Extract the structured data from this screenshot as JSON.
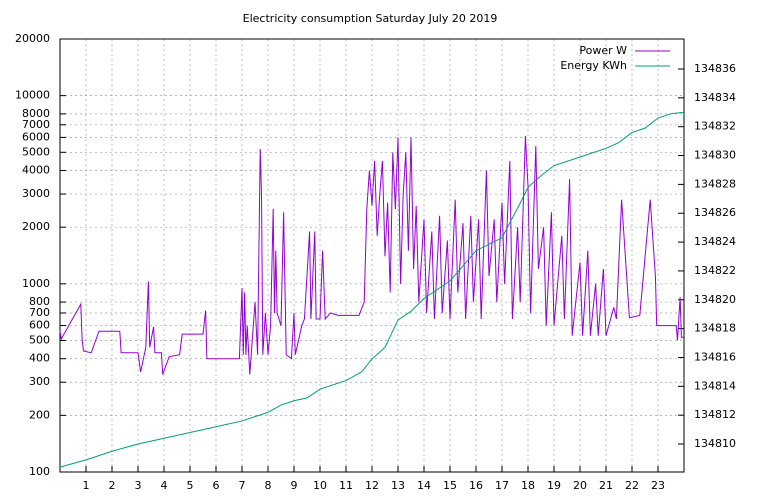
{
  "chart_data": {
    "type": "line",
    "title": "Electricity consumption Saturday July 20 2019",
    "xlim": [
      0,
      24
    ],
    "xticks": [
      1,
      2,
      3,
      4,
      5,
      6,
      7,
      8,
      9,
      10,
      11,
      12,
      13,
      14,
      15,
      16,
      17,
      18,
      19,
      20,
      21,
      22,
      23
    ],
    "ylim": [
      100,
      20000
    ],
    "log_y": true,
    "grid": true,
    "legend": "top-right",
    "yticks": [
      100,
      200,
      300,
      400,
      500,
      600,
      700,
      800,
      1000,
      2000,
      3000,
      4000,
      5000,
      6000,
      7000,
      8000,
      10000,
      20000
    ],
    "y2lim": [
      134808.06,
      134838.08
    ],
    "y2ticks": [
      134810,
      134812,
      134814,
      134816,
      134818,
      134820,
      134822,
      134824,
      134826,
      134828,
      134830,
      134832,
      134834,
      134836
    ],
    "series": [
      {
        "name": "Power W",
        "color": "#9400d3",
        "x": [
          0,
          0.05,
          0.8,
          0.85,
          0.9,
          1.2,
          1.5,
          2.3,
          2.35,
          3.0,
          3.1,
          3.3,
          3.4,
          3.45,
          3.6,
          3.65,
          3.9,
          3.95,
          4.2,
          4.6,
          4.7,
          5.5,
          5.6,
          5.65,
          6.9,
          7.0,
          7.05,
          7.1,
          7.15,
          7.2,
          7.3,
          7.5,
          7.6,
          7.7,
          7.75,
          7.8,
          7.9,
          8.0,
          8.1,
          8.2,
          8.25,
          8.3,
          8.35,
          8.5,
          8.6,
          8.7,
          8.9,
          9.0,
          9.05,
          9.3,
          9.4,
          9.6,
          9.65,
          9.8,
          9.85,
          10.0,
          10.1,
          10.2,
          10.4,
          10.7,
          11.5,
          11.7,
          11.8,
          11.9,
          12.0,
          12.1,
          12.2,
          12.3,
          12.4,
          12.5,
          12.6,
          12.7,
          12.8,
          12.9,
          13.0,
          13.1,
          13.2,
          13.3,
          13.4,
          13.5,
          13.6,
          13.7,
          13.8,
          14.0,
          14.1,
          14.3,
          14.4,
          14.6,
          14.7,
          14.9,
          15.0,
          15.2,
          15.3,
          15.5,
          15.6,
          15.8,
          15.9,
          16.1,
          16.2,
          16.4,
          16.5,
          16.7,
          16.8,
          17.0,
          17.1,
          17.3,
          17.4,
          17.6,
          17.7,
          17.9,
          18.0,
          18.1,
          18.3,
          18.4,
          18.6,
          18.7,
          18.9,
          19.0,
          19.3,
          19.4,
          19.6,
          19.7,
          20.0,
          20.1,
          20.3,
          20.4,
          20.6,
          20.7,
          20.9,
          21.0,
          21.3,
          21.4,
          21.6,
          21.9,
          22.3,
          22.7,
          22.9,
          22.95,
          23.7,
          23.75,
          23.85,
          23.9,
          24
        ],
        "values": [
          560,
          510,
          780,
          510,
          440,
          430,
          560,
          560,
          430,
          430,
          340,
          460,
          1030,
          460,
          590,
          430,
          430,
          330,
          410,
          420,
          540,
          540,
          720,
          400,
          400,
          950,
          420,
          900,
          420,
          600,
          330,
          800,
          420,
          5200,
          3000,
          420,
          700,
          420,
          600,
          2500,
          700,
          1500,
          700,
          600,
          2400,
          420,
          400,
          700,
          420,
          600,
          650,
          1900,
          650,
          1900,
          650,
          650,
          1500,
          650,
          700,
          680,
          680,
          800,
          2500,
          4000,
          2600,
          4500,
          1800,
          3000,
          4500,
          1400,
          2700,
          900,
          5000,
          2500,
          6000,
          1000,
          3000,
          5000,
          1500,
          6000,
          1200,
          2600,
          800,
          2200,
          700,
          1900,
          650,
          2300,
          700,
          1700,
          650,
          2800,
          900,
          2100,
          650,
          2300,
          800,
          2200,
          650,
          4000,
          1100,
          2200,
          800,
          2700,
          1000,
          4500,
          650,
          2000,
          800,
          6100,
          3300,
          700,
          5400,
          1200,
          2000,
          600,
          2400,
          600,
          1800,
          650,
          3600,
          530,
          1300,
          530,
          1500,
          530,
          1000,
          530,
          1200,
          530,
          750,
          650,
          2800,
          660,
          680,
          2800,
          1100,
          600,
          600,
          500,
          850,
          520,
          520
        ]
      },
      {
        "name": "Energy KWh",
        "color": "#009e73",
        "axis": "y2",
        "x": [
          0,
          1,
          2,
          3,
          4,
          5,
          6,
          7,
          7.5,
          8,
          8.5,
          9,
          9.5,
          10,
          11,
          11.6,
          12,
          12.5,
          13,
          13.5,
          14,
          15,
          16,
          17,
          17.7,
          18,
          18.5,
          19,
          20,
          21,
          21.5,
          22,
          22.5,
          23,
          23.5,
          24
        ],
        "values": [
          134808.4,
          134808.9,
          134809.5,
          134810.0,
          134810.4,
          134810.8,
          134811.2,
          134811.6,
          134811.9,
          134812.2,
          134812.7,
          134813.0,
          134813.2,
          134813.8,
          134814.4,
          134815.0,
          134815.9,
          134816.7,
          134818.6,
          134819.2,
          134820.1,
          134821.3,
          134823.4,
          134824.3,
          134826.7,
          134827.8,
          134828.6,
          134829.3,
          134829.9,
          134830.5,
          134830.9,
          134831.6,
          134831.9,
          134832.6,
          134832.9,
          134833.0
        ]
      }
    ]
  }
}
